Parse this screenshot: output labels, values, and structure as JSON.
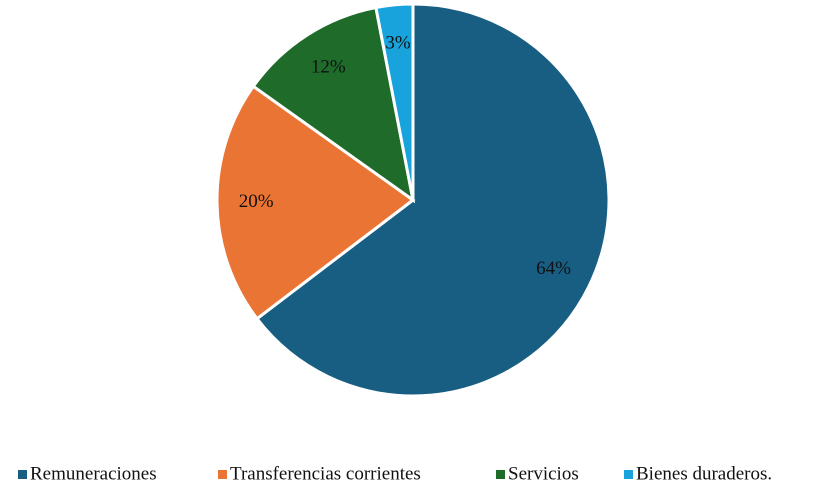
{
  "chart_data": {
    "type": "pie",
    "categories": [
      "Remuneraciones",
      "Transferencias corrientes",
      "Servicios",
      "Bienes duraderos."
    ],
    "values": [
      64,
      20,
      12,
      3
    ],
    "value_labels": [
      "64%",
      "20%",
      "12%",
      "3%"
    ],
    "colors": [
      "#175e82",
      "#ea7433",
      "#1e6b2a",
      "#19a3dc"
    ],
    "legend": "bottom"
  }
}
